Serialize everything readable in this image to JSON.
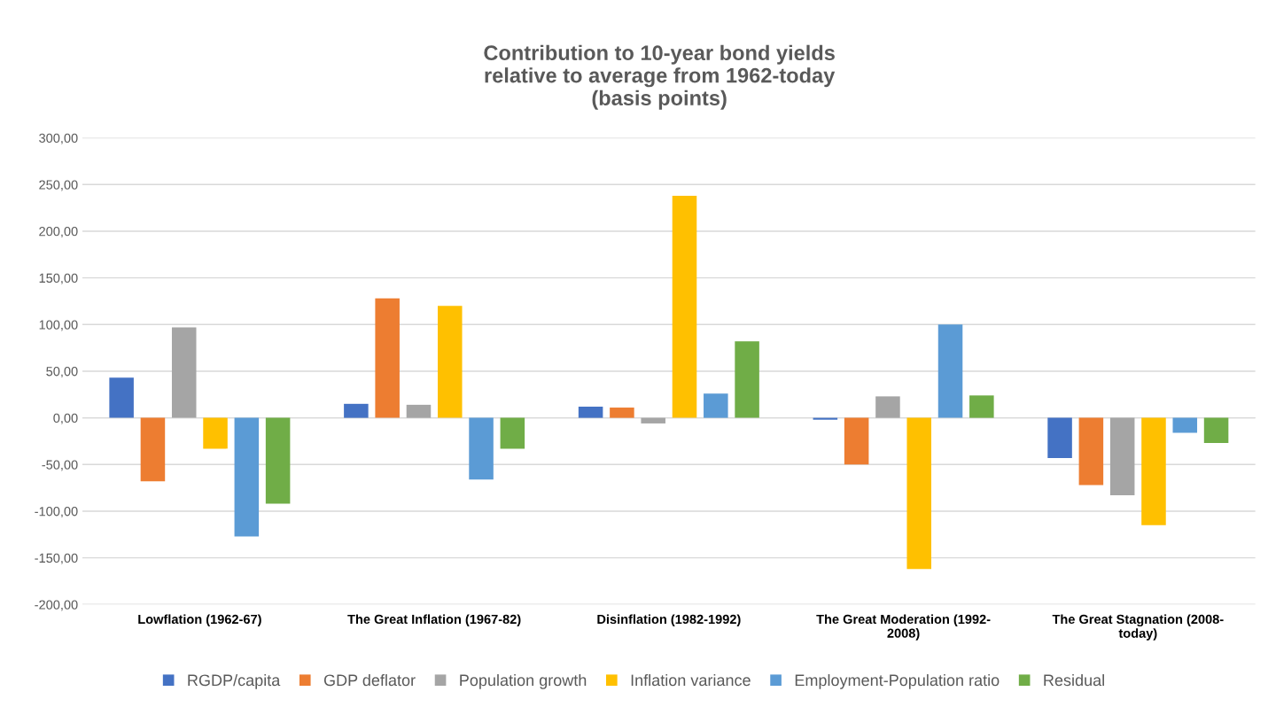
{
  "chart_data": {
    "type": "bar",
    "title": "Contribution to 10-year bond yields\nrelative to average from 1962-today\n(basis points)",
    "categories": [
      "Lowflation (1962-67)",
      "The Great Inflation (1967-82)",
      "Disinflation (1982-1992)",
      "The Great Moderation (1992-\n2008)",
      "The Great Stagnation (2008-\ntoday)"
    ],
    "series": [
      {
        "name": "RGDP/capita",
        "color": "#4472c4",
        "values": [
          43,
          15,
          12,
          -2,
          -43
        ]
      },
      {
        "name": "GDP deflator",
        "color": "#ed7d31",
        "values": [
          -68,
          128,
          11,
          -50,
          -72
        ]
      },
      {
        "name": "Population growth",
        "color": "#a5a5a5",
        "values": [
          97,
          14,
          -6,
          23,
          -83
        ]
      },
      {
        "name": "Inflation variance",
        "color": "#ffc000",
        "values": [
          -33,
          120,
          238,
          -162,
          -115
        ]
      },
      {
        "name": "Employment-Population ratio",
        "color": "#5b9bd5",
        "values": [
          -127,
          -66,
          26,
          100,
          -16
        ]
      },
      {
        "name": "Residual",
        "color": "#70ad47",
        "values": [
          -92,
          -33,
          82,
          24,
          -27
        ]
      }
    ],
    "ylim": [
      -200,
      300
    ],
    "yticks": [
      {
        "value": -200,
        "label": "-200,00"
      },
      {
        "value": -150,
        "label": "-150,00"
      },
      {
        "value": -100,
        "label": "-100,00"
      },
      {
        "value": -50,
        "label": "-50,00"
      },
      {
        "value": 0,
        "label": "0,00"
      },
      {
        "value": 50,
        "label": "50,00"
      },
      {
        "value": 100,
        "label": "100,00"
      },
      {
        "value": 150,
        "label": "150,00"
      },
      {
        "value": 200,
        "label": "200,00"
      },
      {
        "value": 250,
        "label": "250,00"
      },
      {
        "value": 300,
        "label": "300,00"
      }
    ],
    "grid": "y",
    "legend": "bottom"
  }
}
